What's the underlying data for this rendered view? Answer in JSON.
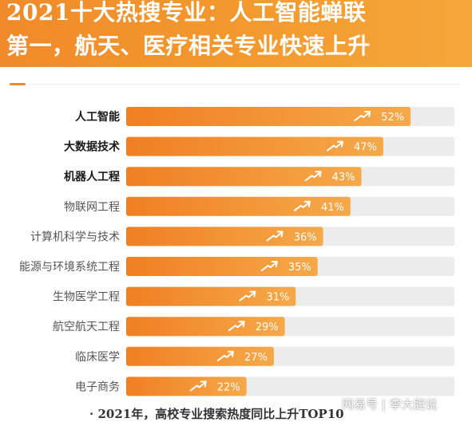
{
  "header": {
    "line1": "2021十大热搜专业：人工智能蝉联",
    "line2": "第一，航天、医疗相关专业快速上升"
  },
  "chart_data": {
    "type": "bar",
    "orientation": "horizontal",
    "categories": [
      "人工智能",
      "大数据技术",
      "机器人工程",
      "物联网工程",
      "计算机科学与技术",
      "能源与环境系统工程",
      "生物医学工程",
      "航空航天工程",
      "临床医学",
      "电子商务"
    ],
    "bold_categories": [
      "人工智能",
      "大数据技术",
      "机器人工程"
    ],
    "values": [
      52,
      47,
      43,
      41,
      36,
      35,
      31,
      29,
      27,
      22
    ],
    "value_labels": [
      "52%",
      "47%",
      "43%",
      "41%",
      "36%",
      "35%",
      "31%",
      "29%",
      "27%",
      "22%"
    ],
    "xlim": [
      0,
      60
    ],
    "colors": {
      "bar_start": "#f07f22",
      "bar_end": "#f5a94a",
      "track": "#ececec",
      "label": "#ffffff"
    }
  },
  "footnote": "· 2021年，高校专业搜索热度同比上升TOP10",
  "watermark": "网易号 | 李大胆说"
}
